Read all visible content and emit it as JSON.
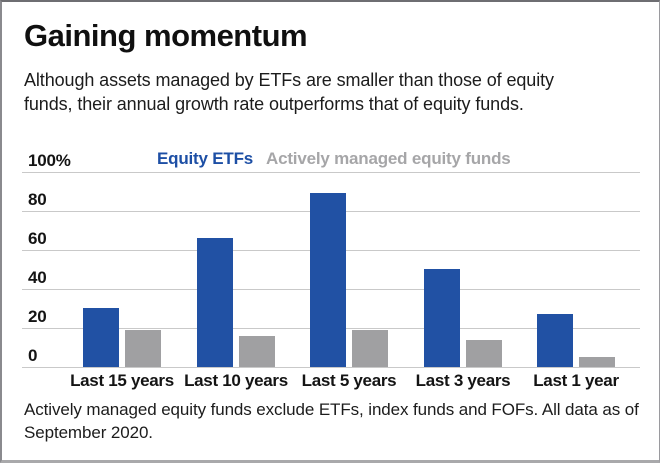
{
  "title": "Gaining momentum",
  "subtitle_lines": [
    "Although assets managed by ETFs are smaller than those of equity",
    "funds, their annual growth rate outperforms that of equity funds."
  ],
  "legend": {
    "etf_label": "Equity ETFs",
    "fund_label": "Actively managed equity funds"
  },
  "footnote_lines": [
    "Actively managed equity funds exclude ETFs, index funds and FOFs. All data as of",
    "September 2020."
  ],
  "colors": {
    "etf_bar": "#2151a4",
    "fund_bar": "#a0a0a2",
    "etf_text": "#1d4fa5",
    "fund_text": "#a6a6a8",
    "gridline": "#c9c9c9"
  },
  "chart_data": {
    "type": "bar",
    "title": "Gaining momentum",
    "categories": [
      "Last 15 years",
      "Last 10 years",
      "Last 5 years",
      "Last 3 years",
      "Last 1 year"
    ],
    "series": [
      {
        "name": "Equity ETFs",
        "color_key": "etf_bar",
        "values": [
          30,
          66,
          89,
          50,
          27
        ]
      },
      {
        "name": "Actively managed equity funds",
        "color_key": "fund_bar",
        "values": [
          19,
          16,
          19,
          14,
          5
        ]
      }
    ],
    "xlabel": "",
    "ylabel": "%",
    "ylim": [
      0,
      100
    ],
    "ytick_labels_top_to_bottom": [
      "100%",
      "80",
      "60",
      "40",
      "20",
      "0"
    ],
    "grid": true,
    "legend_position": "top"
  }
}
